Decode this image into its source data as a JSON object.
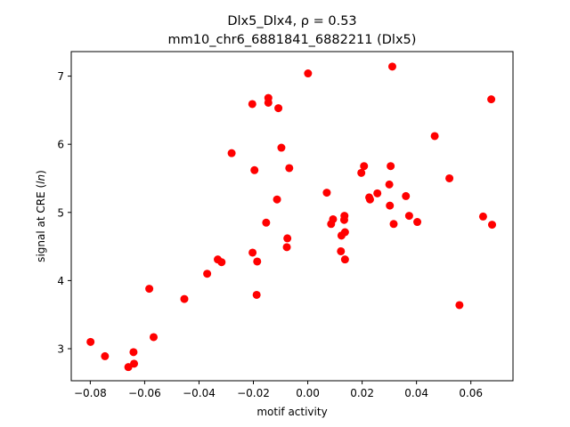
{
  "chart_data": {
    "type": "scatter",
    "title_line1": "Dlx5_Dlx4, ρ = 0.53",
    "title_line2": "mm10_chr6_6881841_6882211 (Dlx5)",
    "xlabel": "motif activity",
    "ylabel": "signal at CRE (ln)",
    "xlim": [
      -0.087,
      0.0755
    ],
    "ylim": [
      2.53,
      7.36
    ],
    "xticks": [
      -0.08,
      -0.06,
      -0.04,
      -0.02,
      0.0,
      0.02,
      0.04,
      0.06
    ],
    "xtick_labels": [
      "−0.08",
      "−0.06",
      "−0.04",
      "−0.02",
      "0.00",
      "0.02",
      "0.04",
      "0.06"
    ],
    "yticks": [
      3,
      4,
      5,
      6,
      7
    ],
    "ytick_labels": [
      "3",
      "4",
      "5",
      "6",
      "7"
    ],
    "grid": false,
    "point_color": "#ff0000",
    "points": [
      [
        -0.0799,
        3.1
      ],
      [
        -0.0746,
        2.89
      ],
      [
        -0.066,
        2.73
      ],
      [
        -0.0641,
        2.95
      ],
      [
        -0.0639,
        2.78
      ],
      [
        -0.0583,
        3.88
      ],
      [
        -0.0567,
        3.17
      ],
      [
        -0.0454,
        3.73
      ],
      [
        -0.037,
        4.1
      ],
      [
        -0.0331,
        4.31
      ],
      [
        -0.0317,
        4.27
      ],
      [
        -0.028,
        5.87
      ],
      [
        -0.0204,
        6.59
      ],
      [
        -0.0203,
        4.41
      ],
      [
        -0.0196,
        5.62
      ],
      [
        -0.0188,
        3.79
      ],
      [
        -0.0186,
        4.28
      ],
      [
        -0.0153,
        4.85
      ],
      [
        -0.0145,
        6.68
      ],
      [
        -0.0145,
        6.61
      ],
      [
        -0.0113,
        5.19
      ],
      [
        -0.0108,
        6.53
      ],
      [
        -0.0097,
        5.95
      ],
      [
        -0.0077,
        4.49
      ],
      [
        -0.0075,
        4.62
      ],
      [
        -0.0068,
        5.65
      ],
      [
        0.0001,
        7.04
      ],
      [
        0.007,
        5.29
      ],
      [
        0.0086,
        4.83
      ],
      [
        0.0093,
        4.9
      ],
      [
        0.0122,
        4.43
      ],
      [
        0.0124,
        4.66
      ],
      [
        0.0134,
        4.89
      ],
      [
        0.0135,
        4.95
      ],
      [
        0.0137,
        4.71
      ],
      [
        0.0137,
        4.31
      ],
      [
        0.0197,
        5.58
      ],
      [
        0.0207,
        5.68
      ],
      [
        0.0226,
        5.22
      ],
      [
        0.0229,
        5.19
      ],
      [
        0.0256,
        5.28
      ],
      [
        0.03,
        5.41
      ],
      [
        0.0302,
        5.1
      ],
      [
        0.0305,
        5.68
      ],
      [
        0.0311,
        7.14
      ],
      [
        0.0316,
        4.83
      ],
      [
        0.0361,
        5.24
      ],
      [
        0.0373,
        4.95
      ],
      [
        0.0403,
        4.86
      ],
      [
        0.0467,
        6.12
      ],
      [
        0.0521,
        5.5
      ],
      [
        0.0558,
        3.64
      ],
      [
        0.0645,
        4.94
      ],
      [
        0.0675,
        6.66
      ],
      [
        0.0678,
        4.82
      ]
    ]
  }
}
